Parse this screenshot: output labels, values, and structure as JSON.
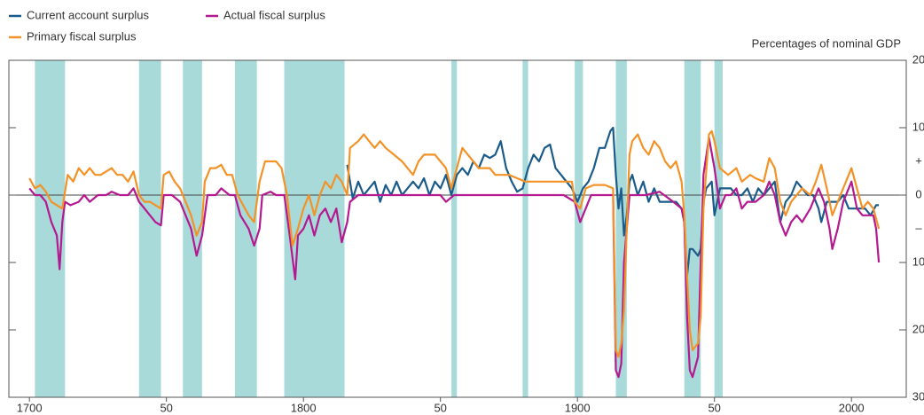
{
  "chart_data": {
    "type": "line",
    "y_axis_label": "Percentages of nominal GDP",
    "xlim": [
      1692.5,
      2020
    ],
    "xticks": [
      1700,
      {
        "value": 1750,
        "label": "50"
      },
      1800,
      {
        "value": 1850,
        "label": "50"
      },
      1900,
      {
        "value": 1950,
        "label": "50"
      },
      2000
    ],
    "ylim": [
      -30,
      20
    ],
    "yticks": [
      20,
      10,
      0,
      {
        "value": -10,
        "label": "10"
      },
      {
        "value": -20,
        "label": "20"
      },
      {
        "value": -30,
        "label": "30"
      }
    ],
    "y_sign_labels": [
      {
        "value": 5,
        "label": "+"
      },
      {
        "value": -5,
        "label": "–"
      }
    ],
    "shade_color": "#a9dada",
    "shaded_periods": [
      [
        1702,
        1713
      ],
      [
        1740,
        1748
      ],
      [
        1756,
        1763
      ],
      [
        1775,
        1783
      ],
      [
        1793,
        1815
      ],
      [
        1854,
        1856
      ],
      [
        1880,
        1882
      ],
      [
        1899,
        1902
      ],
      [
        1914,
        1918
      ],
      [
        1939,
        1945
      ],
      [
        1950,
        1953
      ]
    ],
    "series": [
      {
        "name": "Current account surplus",
        "color": "#1b5b8a",
        "x": [
          1816,
          1818,
          1820,
          1822,
          1824,
          1826,
          1828,
          1830,
          1832,
          1834,
          1836,
          1838,
          1840,
          1842,
          1844,
          1846,
          1848,
          1850,
          1852,
          1854,
          1856,
          1858,
          1860,
          1862,
          1864,
          1866,
          1868,
          1870,
          1872,
          1874,
          1876,
          1878,
          1880,
          1882,
          1884,
          1886,
          1888,
          1890,
          1892,
          1894,
          1896,
          1898,
          1900,
          1902,
          1904,
          1906,
          1908,
          1910,
          1912,
          1913,
          1914,
          1915,
          1916,
          1917,
          1918,
          1919,
          1920,
          1922,
          1924,
          1926,
          1928,
          1930,
          1932,
          1934,
          1936,
          1938,
          1939,
          1940,
          1941,
          1942,
          1944,
          1945,
          1946,
          1947,
          1949,
          1950,
          1952,
          1954,
          1956,
          1958,
          1960,
          1962,
          1964,
          1966,
          1968,
          1970,
          1972,
          1974,
          1976,
          1978,
          1980,
          1982,
          1984,
          1986,
          1988,
          1989,
          1991,
          1993,
          1995,
          1997,
          1999,
          2001,
          2003,
          2005,
          2007,
          2009,
          2010
        ],
        "values": [
          4.5,
          -0.5,
          2,
          0,
          1,
          2,
          -1,
          1.5,
          0,
          2,
          0,
          1,
          2,
          1,
          2.5,
          0,
          2,
          1,
          3,
          0,
          3,
          4,
          3,
          5,
          4,
          6,
          5.5,
          6,
          8,
          4,
          2,
          0.5,
          1,
          4,
          6,
          5,
          7,
          7.5,
          4,
          3,
          2,
          1,
          -1,
          1,
          2,
          4,
          7,
          7,
          9.5,
          10,
          3,
          -2,
          1,
          -6,
          -3,
          2,
          3,
          0,
          2,
          -1,
          1,
          -1,
          -1,
          -1,
          -1,
          -2,
          -4,
          -12,
          -8,
          -8,
          -9,
          -8,
          -1,
          1,
          2,
          -3,
          1,
          1,
          1,
          0,
          0,
          1,
          -1,
          1,
          0,
          1,
          2,
          -4,
          -1,
          0,
          2,
          1,
          0,
          0,
          -2,
          -4,
          -1,
          -1,
          -1,
          0,
          -2,
          -2,
          -2,
          -2,
          -3,
          -1.5,
          -1.5
        ]
      },
      {
        "name": "Actual fiscal surplus",
        "color": "#b4198f",
        "x": [
          1700,
          1702,
          1704,
          1706,
          1708,
          1710,
          1711,
          1712,
          1713,
          1715,
          1718,
          1720,
          1722,
          1725,
          1728,
          1730,
          1733,
          1736,
          1738,
          1740,
          1742,
          1744,
          1746,
          1748,
          1749,
          1752,
          1755,
          1757,
          1759,
          1761,
          1763,
          1765,
          1768,
          1770,
          1773,
          1775,
          1777,
          1780,
          1782,
          1784,
          1785,
          1788,
          1790,
          1793,
          1795,
          1797,
          1798,
          1800,
          1802,
          1804,
          1806,
          1808,
          1810,
          1812,
          1814,
          1816,
          1817,
          1820,
          1825,
          1830,
          1835,
          1840,
          1845,
          1850,
          1852,
          1855,
          1860,
          1865,
          1870,
          1875,
          1880,
          1885,
          1890,
          1895,
          1899,
          1901,
          1903,
          1905,
          1910,
          1913,
          1914,
          1915,
          1916,
          1917,
          1918,
          1919,
          1922,
          1925,
          1930,
          1935,
          1938,
          1939,
          1940,
          1941,
          1942,
          1944,
          1945,
          1946,
          1948,
          1950,
          1952,
          1954,
          1956,
          1958,
          1960,
          1962,
          1965,
          1968,
          1970,
          1972,
          1974,
          1976,
          1978,
          1980,
          1982,
          1985,
          1988,
          1990,
          1992,
          1993,
          1995,
          1997,
          1999,
          2000,
          2002,
          2004,
          2006,
          2008,
          2009,
          2010
        ],
        "values": [
          1,
          0,
          0,
          -1,
          -4,
          -6,
          -11,
          -4,
          -1,
          -1.5,
          -1,
          0,
          -1,
          0,
          0,
          0.5,
          0,
          0,
          1,
          -1,
          -2,
          -3,
          -4,
          -4.5,
          0,
          0,
          -1,
          -3,
          -5,
          -9,
          -6,
          0,
          0,
          1,
          0,
          0,
          -3,
          -5,
          -7.5,
          -5,
          0,
          0.5,
          0,
          0,
          -6,
          -12.5,
          -6,
          -5,
          -3,
          -6,
          -3,
          -2,
          -4,
          -2,
          -7,
          -4,
          -1,
          0,
          0,
          0,
          0,
          0,
          0,
          0,
          -1,
          0,
          0,
          0,
          0,
          0,
          0,
          0,
          0,
          0,
          -1,
          -4,
          -2,
          0,
          0,
          0,
          -26,
          -27,
          -25,
          -10,
          -5,
          0,
          0,
          0,
          0.5,
          -1,
          -2,
          -4,
          -18,
          -26,
          -27,
          -24,
          -10,
          3,
          8.5,
          4,
          -2,
          0,
          0,
          1,
          -2,
          -1,
          -1,
          0,
          2,
          0,
          -4,
          -6,
          -4,
          -3,
          -4,
          -2,
          1,
          -1,
          -5,
          -8,
          -5,
          -1,
          1,
          2,
          -2,
          -3,
          -3,
          -3,
          -5,
          -10
        ]
      },
      {
        "name": "Primary fiscal surplus",
        "color": "#f39227",
        "x": [
          1700,
          1702,
          1704,
          1706,
          1708,
          1710,
          1712,
          1714,
          1716,
          1718,
          1720,
          1722,
          1724,
          1726,
          1728,
          1730,
          1732,
          1734,
          1736,
          1738,
          1740,
          1742,
          1744,
          1746,
          1748,
          1749,
          1751,
          1753,
          1755,
          1757,
          1759,
          1761,
          1763,
          1764,
          1766,
          1768,
          1770,
          1772,
          1774,
          1776,
          1778,
          1780,
          1782,
          1784,
          1786,
          1788,
          1790,
          1792,
          1794,
          1796,
          1798,
          1800,
          1802,
          1804,
          1806,
          1808,
          1810,
          1812,
          1814,
          1816,
          1817,
          1820,
          1822,
          1824,
          1826,
          1828,
          1830,
          1833,
          1836,
          1838,
          1840,
          1842,
          1844,
          1846,
          1848,
          1850,
          1852,
          1854,
          1856,
          1858,
          1860,
          1862,
          1864,
          1866,
          1868,
          1870,
          1872,
          1875,
          1878,
          1881,
          1884,
          1887,
          1890,
          1894,
          1898,
          1899,
          1901,
          1903,
          1906,
          1910,
          1913,
          1914,
          1915,
          1916,
          1917,
          1918,
          1919,
          1920,
          1922,
          1924,
          1926,
          1928,
          1930,
          1932,
          1934,
          1936,
          1938,
          1939,
          1940,
          1941,
          1942,
          1944,
          1945,
          1946,
          1948,
          1949,
          1950,
          1952,
          1955,
          1958,
          1960,
          1963,
          1965,
          1968,
          1970,
          1972,
          1974,
          1976,
          1978,
          1980,
          1982,
          1985,
          1987,
          1989,
          1991,
          1993,
          1995,
          1997,
          1999,
          2000,
          2002,
          2004,
          2006,
          2008,
          2010
        ],
        "values": [
          2.5,
          1,
          1.5,
          0.5,
          -1,
          -1.5,
          -2,
          3,
          2,
          4,
          3,
          4,
          3,
          3,
          3.5,
          4,
          3,
          3,
          2,
          3.5,
          0,
          -1,
          -1,
          -1.5,
          -2,
          3,
          3.5,
          2,
          1,
          -1,
          -3,
          -6,
          -4,
          2,
          4,
          4,
          4.5,
          3,
          3,
          0,
          -1.5,
          -3,
          -4,
          2,
          5,
          5,
          5,
          4,
          0,
          -7.5,
          -5,
          -2,
          0,
          -3,
          0,
          2,
          1,
          3,
          2,
          0,
          7,
          8,
          9,
          8,
          7,
          8,
          7,
          6,
          5,
          4,
          3,
          5,
          6,
          6,
          6,
          5,
          4,
          1,
          4,
          7,
          6,
          5,
          4,
          4,
          4,
          3,
          3,
          3,
          2.5,
          2,
          2,
          2,
          2,
          2,
          2,
          -1,
          -2,
          1,
          1.5,
          1.5,
          1,
          -23,
          -24,
          -22,
          -17,
          -5,
          6,
          8,
          9,
          7,
          6,
          8,
          7,
          5,
          4,
          5,
          2,
          -3,
          -12,
          -20,
          -23,
          -22,
          -18,
          -2,
          9,
          9.5,
          8,
          4,
          3,
          4,
          2,
          3,
          2.5,
          2,
          5.5,
          4,
          -1,
          -3,
          -1,
          0,
          1,
          0,
          2,
          4.5,
          1,
          -3,
          -1,
          1,
          3,
          4,
          1,
          -2,
          -1,
          -2,
          -5
        ]
      }
    ]
  }
}
